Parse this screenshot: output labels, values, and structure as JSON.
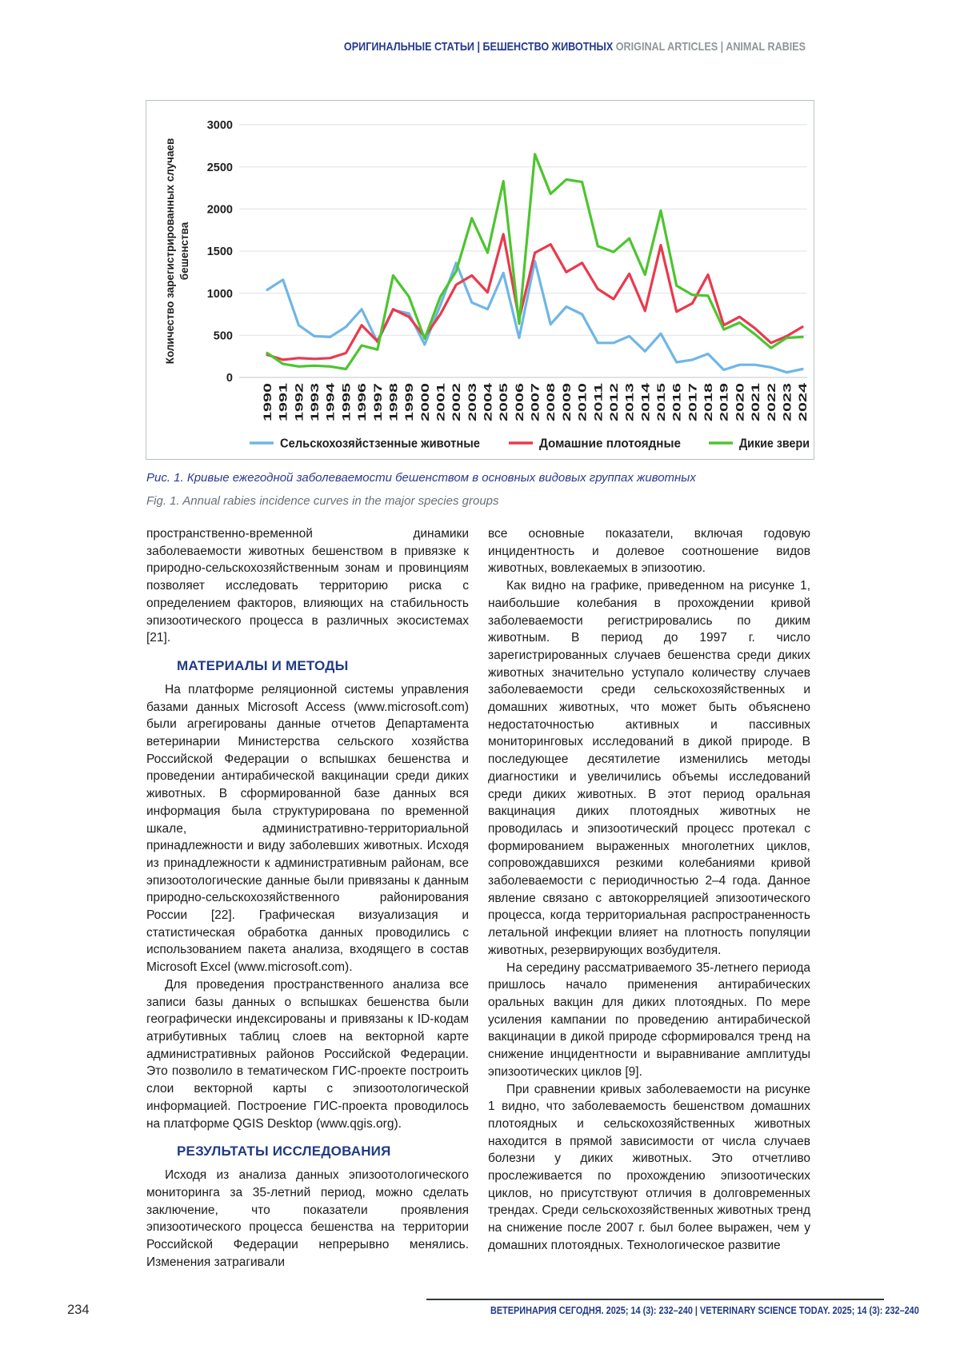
{
  "header": {
    "ru": "ОРИГИНАЛЬНЫЕ СТАТЬИ | БЕШЕНСТВО ЖИВОТНЫХ",
    "en": "ORIGINAL ARTICLES | ANIMAL RABIES"
  },
  "figure": {
    "caption_ru": "Рис. 1. Кривые ежегодной заболеваемости бешенством в основных видовых группах животных",
    "caption_en": "Fig. 1. Annual rabies incidence curves in the major species groups"
  },
  "chart_data": {
    "type": "line",
    "title": "",
    "xlabel": "",
    "ylabel": "Количество зарегистрированных случаев бешенства",
    "ylabel_lines": [
      "Количество зарегистрированных случаев",
      "бешенства"
    ],
    "ylim": [
      0,
      3000
    ],
    "yticks": [
      0,
      500,
      1000,
      1500,
      2000,
      2500,
      3000
    ],
    "grid": "horizontal",
    "legend_position": "bottom",
    "x": [
      "1990",
      "1991",
      "1992",
      "1993",
      "1994",
      "1995",
      "1996",
      "1997",
      "1998",
      "1999",
      "2000",
      "2001",
      "2002",
      "2003",
      "2004",
      "2005",
      "2006",
      "2007",
      "2008",
      "2009",
      "2010",
      "2011",
      "2012",
      "2013",
      "2014",
      "2015",
      "2016",
      "2017",
      "2018",
      "2019",
      "2020",
      "2021",
      "2022",
      "2023",
      "2024"
    ],
    "series": [
      {
        "name": "Сельскохозяйстзенные животные",
        "color": "#6fb6e6",
        "values": [
          1040,
          1160,
          620,
          490,
          480,
          600,
          810,
          420,
          800,
          760,
          390,
          860,
          1360,
          890,
          810,
          1240,
          470,
          1380,
          630,
          840,
          750,
          410,
          410,
          490,
          310,
          520,
          180,
          210,
          280,
          90,
          150,
          150,
          120,
          60,
          100
        ]
      },
      {
        "name": "Домашние плотоядные",
        "color": "#e93a4e",
        "values": [
          270,
          210,
          230,
          220,
          230,
          290,
          620,
          430,
          810,
          720,
          480,
          750,
          1100,
          1210,
          1010,
          1700,
          690,
          1480,
          1580,
          1250,
          1360,
          1050,
          930,
          1230,
          790,
          1570,
          780,
          880,
          1220,
          620,
          720,
          580,
          410,
          490,
          600
        ]
      },
      {
        "name": "Дикие звери",
        "color": "#4cc52f",
        "values": [
          290,
          160,
          130,
          140,
          130,
          100,
          380,
          330,
          1210,
          960,
          460,
          960,
          1260,
          1890,
          1480,
          2330,
          640,
          2650,
          2180,
          2350,
          2320,
          1560,
          1490,
          1650,
          1220,
          1980,
          1090,
          980,
          970,
          570,
          650,
          510,
          350,
          470,
          480
        ]
      }
    ]
  },
  "article": {
    "left_column": [
      {
        "type": "p",
        "indent": false,
        "text": "пространственно-временной динамики заболеваемости животных бешенством в привязке к природно-сельскохозяйственным зонам и провинциям позволяет исследовать территорию риска с определением факторов, влияющих на стабильность эпизоотического процесса в различных экосистемах [21]."
      },
      {
        "type": "h",
        "text": "МАТЕРИАЛЫ И МЕТОДЫ"
      },
      {
        "type": "p",
        "indent": true,
        "text": "На платформе реляционной системы управления базами данных Microsoft Access (www.microsoft.com) были агрегированы данные отчетов Департамента ветеринарии Министерства сельского хозяйства Российской Федерации о вспышках бешенства и проведении антирабической вакцинации среди диких животных. В сформированной базе данных вся информация была структурирована по временной шкале, административно-территориальной принадлежности и виду заболевших животных. Исходя из принадлежности к административным районам, все эпизоотологические данные были привязаны к данным природно-сельскохозяйственного районирования России [22]. Графическая визуализация и статистическая обработка данных проводились с использованием пакета анализа, входящего в состав Microsoft Excel (www.microsoft.com)."
      },
      {
        "type": "p",
        "indent": true,
        "text": "Для проведения пространственного анализа все записи базы данных о вспышках бешенства были географически индексированы и привязаны к ID-кодам атрибутивных таблиц слоев на векторной карте административных районов Российской Федерации. Это позволило в тематическом ГИС-проекте построить слои векторной карты с эпизоотологической информацией. Построение ГИС-проекта проводилось на платформе QGIS Desktop (www.qgis.org)."
      },
      {
        "type": "h",
        "text": "РЕЗУЛЬТАТЫ ИССЛЕДОВАНИЯ"
      },
      {
        "type": "p",
        "indent": true,
        "text": "Исходя из анализа данных эпизоотологического мониторинга за 35-летний период, можно сделать заключение, что показатели проявления эпизоотического процесса бешенства на территории Российской Федерации непрерывно менялись. Изменения затрагивали"
      }
    ],
    "right_column": [
      {
        "type": "p",
        "indent": false,
        "text": "все основные показатели, включая годовую инцидентность и долевое соотношение видов животных, вовлекаемых в эпизоотию."
      },
      {
        "type": "p",
        "indent": true,
        "text": "Как видно на графике, приведенном на рисунке 1, наибольшие колебания в прохождении кривой заболеваемости регистрировались по диким животным. В период до 1997 г. число зарегистрированных случаев бешенства среди диких животных значительно уступало количеству случаев заболеваемости среди сельскохозяйственных и домашних животных, что может быть объяснено недостаточностью активных и пассивных мониторинговых исследований в дикой природе. В последующее десятилетие изменились методы диагностики и увеличились объемы исследований среди диких животных. В этот период оральная вакцинация диких плотоядных животных не проводилась и эпизоотический процесс протекал с формированием выраженных многолетних циклов, сопровождавшихся резкими колебаниями кривой заболеваемости с периодичностью 2–4 года. Данное явление связано с автокорреляцией эпизоотического процесса, когда территориальная распространенность летальной инфекции влияет на плотность популяции животных, резервирующих возбудителя."
      },
      {
        "type": "p",
        "indent": true,
        "text": "На середину рассматриваемого 35-летнего периода пришлось начало применения антирабических оральных вакцин для диких плотоядных. По мере усиления кампании по проведению антирабической вакцинации в дикой природе сформировался тренд на снижение инцидентности и выравнивание амплитуды эпизоотических циклов [9]."
      },
      {
        "type": "p",
        "indent": true,
        "text": "При сравнении кривых заболеваемости на рисунке 1 видно, что заболеваемость бешенством домашних плотоядных и сельскохозяйственных животных находится в прямой зависимости от числа случаев болезни у диких животных. Это отчетливо прослеживается по прохождению эпизоотических циклов, но присутствуют отличия в долговременных трендах. Среди сельскохозяйственных животных тренд на снижение после 2007 г. был более выражен, чем у домашних плотоядных. Технологическое развитие"
      }
    ]
  },
  "footer": {
    "page_number": "234",
    "journal_line": "ВЕТЕРИНАРИЯ СЕГОДНЯ. 2025; 14 (3): 232–240 | VETERINARY SCIENCE TODAY. 2025; 14 (3): 232–240"
  }
}
